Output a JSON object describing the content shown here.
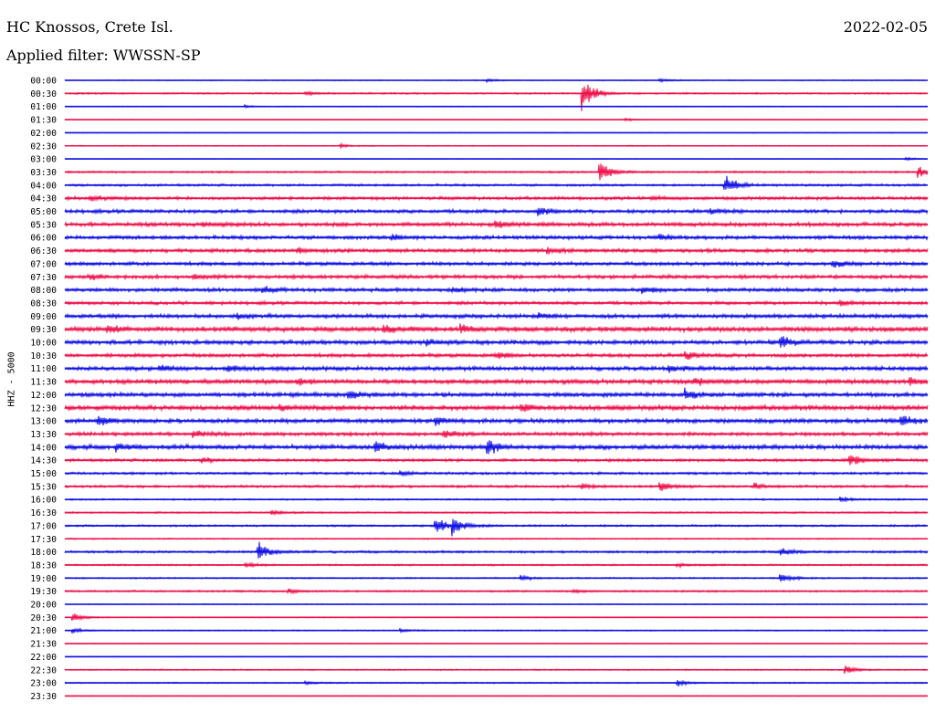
{
  "header": {
    "station": "HC Knossos, Crete Isl.",
    "filter": "Applied filter: WWSSN-SP",
    "date": "2022-02-05"
  },
  "colors": {
    "blue_trace": "#1010e6",
    "red_trace": "#f0104a"
  },
  "chart_data": {
    "type": "helicorder",
    "ylabel": "HHZ - 5000",
    "rows": [
      {
        "time": "00:00",
        "color": "blue",
        "noise": 0.6,
        "events": [
          [
            0.49,
            2
          ],
          [
            0.69,
            2.5
          ]
        ]
      },
      {
        "time": "00:30",
        "color": "red",
        "noise": 1.0,
        "events": [
          [
            0.28,
            2
          ],
          [
            0.6,
            22
          ]
        ]
      },
      {
        "time": "01:00",
        "color": "blue",
        "noise": 0.5,
        "events": [
          [
            0.21,
            1.5
          ]
        ]
      },
      {
        "time": "01:30",
        "color": "red",
        "noise": 0.4,
        "events": [
          [
            0.65,
            1.5
          ]
        ]
      },
      {
        "time": "02:00",
        "color": "blue",
        "noise": 0.5,
        "events": []
      },
      {
        "time": "02:30",
        "color": "red",
        "noise": 0.6,
        "events": [
          [
            0.32,
            2
          ]
        ]
      },
      {
        "time": "03:00",
        "color": "blue",
        "noise": 0.4,
        "events": [
          [
            0.975,
            2
          ]
        ]
      },
      {
        "time": "03:30",
        "color": "red",
        "noise": 1.1,
        "events": [
          [
            0.62,
            14
          ],
          [
            0.99,
            6
          ]
        ]
      },
      {
        "time": "04:00",
        "color": "blue",
        "noise": 1.4,
        "events": [
          [
            0.765,
            14
          ]
        ]
      },
      {
        "time": "04:30",
        "color": "red",
        "noise": 2.0,
        "events": [
          [
            0.03,
            3
          ],
          [
            0.68,
            2
          ]
        ]
      },
      {
        "time": "05:00",
        "color": "blue",
        "noise": 2.2,
        "events": [
          [
            0.55,
            5
          ],
          [
            0.75,
            3
          ]
        ]
      },
      {
        "time": "05:30",
        "color": "red",
        "noise": 2.4,
        "events": [
          [
            0.16,
            3
          ],
          [
            0.5,
            5
          ]
        ]
      },
      {
        "time": "06:00",
        "color": "blue",
        "noise": 2.2,
        "events": [
          [
            0.38,
            4
          ],
          [
            0.69,
            4
          ]
        ]
      },
      {
        "time": "06:30",
        "color": "red",
        "noise": 2.2,
        "events": [
          [
            0.27,
            3
          ],
          [
            0.56,
            4
          ]
        ]
      },
      {
        "time": "07:00",
        "color": "blue",
        "noise": 2.2,
        "events": [
          [
            0.89,
            4
          ]
        ]
      },
      {
        "time": "07:30",
        "color": "red",
        "noise": 2.3,
        "events": [
          [
            0.03,
            4
          ],
          [
            0.15,
            3
          ]
        ]
      },
      {
        "time": "08:00",
        "color": "blue",
        "noise": 2.2,
        "events": [
          [
            0.23,
            4
          ],
          [
            0.45,
            4
          ],
          [
            0.67,
            4
          ]
        ]
      },
      {
        "time": "08:30",
        "color": "red",
        "noise": 2.0,
        "events": [
          [
            0.9,
            3
          ]
        ]
      },
      {
        "time": "09:00",
        "color": "blue",
        "noise": 2.4,
        "events": [
          [
            0.2,
            3
          ],
          [
            0.55,
            3
          ]
        ]
      },
      {
        "time": "09:30",
        "color": "red",
        "noise": 3.0,
        "events": [
          [
            0.05,
            4
          ],
          [
            0.37,
            5
          ],
          [
            0.46,
            5
          ]
        ]
      },
      {
        "time": "10:00",
        "color": "blue",
        "noise": 2.6,
        "events": [
          [
            0.83,
            9
          ],
          [
            0.42,
            4
          ]
        ]
      },
      {
        "time": "10:30",
        "color": "red",
        "noise": 2.2,
        "events": [
          [
            0.5,
            4
          ],
          [
            0.72,
            5
          ]
        ]
      },
      {
        "time": "11:00",
        "color": "blue",
        "noise": 2.5,
        "events": [
          [
            0.11,
            4
          ],
          [
            0.19,
            4
          ],
          [
            0.7,
            5
          ]
        ]
      },
      {
        "time": "11:30",
        "color": "red",
        "noise": 2.8,
        "events": [
          [
            0.27,
            4
          ],
          [
            0.73,
            5
          ],
          [
            0.98,
            4
          ]
        ]
      },
      {
        "time": "12:00",
        "color": "blue",
        "noise": 2.6,
        "events": [
          [
            0.33,
            6
          ],
          [
            0.72,
            6
          ]
        ]
      },
      {
        "time": "12:30",
        "color": "red",
        "noise": 3.0,
        "events": [
          [
            0.25,
            4
          ],
          [
            0.53,
            4
          ]
        ]
      },
      {
        "time": "13:00",
        "color": "blue",
        "noise": 2.6,
        "events": [
          [
            0.04,
            6
          ],
          [
            0.43,
            6
          ],
          [
            0.97,
            7
          ]
        ]
      },
      {
        "time": "13:30",
        "color": "red",
        "noise": 2.2,
        "events": [
          [
            0.15,
            4
          ],
          [
            0.44,
            5
          ]
        ]
      },
      {
        "time": "14:00",
        "color": "blue",
        "noise": 2.8,
        "events": [
          [
            0.36,
            6
          ],
          [
            0.49,
            9
          ],
          [
            0.06,
            4
          ]
        ]
      },
      {
        "time": "14:30",
        "color": "red",
        "noise": 1.8,
        "events": [
          [
            0.16,
            3
          ],
          [
            0.91,
            8
          ]
        ]
      },
      {
        "time": "15:00",
        "color": "blue",
        "noise": 1.5,
        "events": [
          [
            0.39,
            3
          ]
        ]
      },
      {
        "time": "15:30",
        "color": "red",
        "noise": 1.6,
        "events": [
          [
            0.6,
            3
          ],
          [
            0.69,
            6
          ],
          [
            0.8,
            3
          ]
        ]
      },
      {
        "time": "16:00",
        "color": "blue",
        "noise": 1.0,
        "events": [
          [
            0.9,
            3
          ]
        ]
      },
      {
        "time": "16:30",
        "color": "red",
        "noise": 1.0,
        "events": [
          [
            0.24,
            3
          ]
        ]
      },
      {
        "time": "17:00",
        "color": "blue",
        "noise": 1.2,
        "events": [
          [
            0.43,
            10
          ],
          [
            0.45,
            12
          ]
        ]
      },
      {
        "time": "17:30",
        "color": "red",
        "noise": 0.8,
        "events": []
      },
      {
        "time": "18:00",
        "color": "blue",
        "noise": 1.4,
        "events": [
          [
            0.225,
            12
          ],
          [
            0.83,
            5
          ]
        ]
      },
      {
        "time": "18:30",
        "color": "red",
        "noise": 1.0,
        "events": [
          [
            0.21,
            3
          ],
          [
            0.71,
            3
          ]
        ]
      },
      {
        "time": "19:00",
        "color": "blue",
        "noise": 0.9,
        "events": [
          [
            0.53,
            3
          ],
          [
            0.83,
            6
          ]
        ]
      },
      {
        "time": "19:30",
        "color": "red",
        "noise": 1.1,
        "events": [
          [
            0.26,
            3
          ],
          [
            0.59,
            2
          ]
        ]
      },
      {
        "time": "20:00",
        "color": "blue",
        "noise": 0.6,
        "events": []
      },
      {
        "time": "20:30",
        "color": "red",
        "noise": 0.6,
        "events": [
          [
            0.01,
            5
          ]
        ]
      },
      {
        "time": "21:00",
        "color": "blue",
        "noise": 0.7,
        "events": [
          [
            0.01,
            3
          ],
          [
            0.39,
            2
          ]
        ]
      },
      {
        "time": "21:30",
        "color": "red",
        "noise": 0.5,
        "events": []
      },
      {
        "time": "22:00",
        "color": "blue",
        "noise": 0.5,
        "events": []
      },
      {
        "time": "22:30",
        "color": "red",
        "noise": 0.8,
        "events": [
          [
            0.905,
            5
          ]
        ]
      },
      {
        "time": "23:00",
        "color": "blue",
        "noise": 0.8,
        "events": [
          [
            0.28,
            2
          ],
          [
            0.71,
            4
          ]
        ]
      },
      {
        "time": "23:30",
        "color": "red",
        "noise": 0.5,
        "events": []
      }
    ]
  }
}
